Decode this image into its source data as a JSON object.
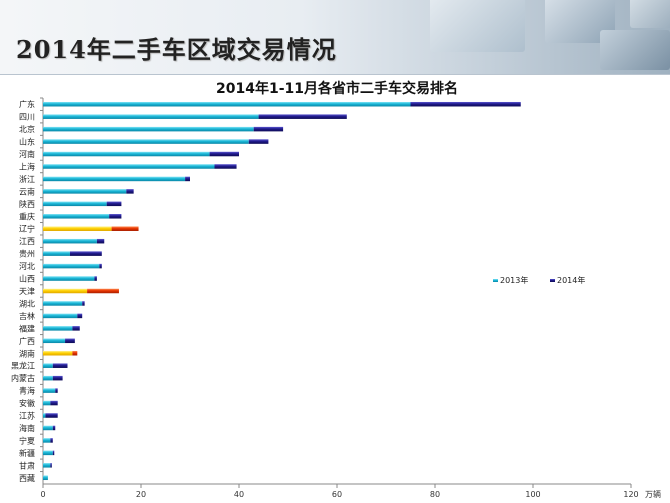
{
  "slide": {
    "title": "2014年二手车区域交易情况"
  },
  "chart_data": {
    "type": "bar",
    "orientation": "horizontal",
    "stacked": true,
    "title": "2014年1-11月各省市二手车交易排名",
    "unit": "万辆",
    "xlim": [
      0,
      120
    ],
    "xticks": [
      0,
      20,
      40,
      60,
      80,
      100,
      120
    ],
    "grid": false,
    "legend_position": "right",
    "categories": [
      "广东",
      "四川",
      "北京",
      "山东",
      "河南",
      "上海",
      "浙江",
      "云南",
      "陕西",
      "重庆",
      "辽宁",
      "江西",
      "贵州",
      "河北",
      "山西",
      "天津",
      "湖北",
      "吉林",
      "福建",
      "广西",
      "湖南",
      "黑龙江",
      "内蒙古",
      "青海",
      "安徽",
      "江苏",
      "海南",
      "宁夏",
      "新疆",
      "甘肃",
      "西藏"
    ],
    "series": [
      {
        "name": "2013年",
        "color": "#19b6d6",
        "values": [
          75,
          44,
          43,
          42,
          34,
          35,
          29,
          17,
          13,
          13.5,
          14,
          11,
          5.5,
          11.5,
          10.5,
          9,
          8,
          7,
          6,
          4.5,
          6,
          2,
          2,
          2.5,
          1.5,
          0.5,
          2,
          1.5,
          2,
          1.5,
          1
        ]
      },
      {
        "name": "2014年",
        "color": "#1f1a8a",
        "values": [
          22.5,
          18,
          6,
          4,
          6,
          4.5,
          1,
          1.5,
          3,
          2.5,
          5.5,
          1.5,
          6.5,
          0.5,
          0.5,
          6.5,
          0.5,
          1,
          1.5,
          2,
          1,
          3,
          2,
          0.5,
          1.5,
          2.5,
          0.5,
          0.5,
          0.3,
          0.3,
          0
        ]
      }
    ],
    "highlighted": [
      {
        "category": "辽宁",
        "colors": [
          "#ffd000",
          "#e63300"
        ]
      },
      {
        "category": "天津",
        "colors": [
          "#ffd000",
          "#e63300"
        ]
      },
      {
        "category": "湖南",
        "colors": [
          "#ffd000",
          "#e63300"
        ]
      }
    ]
  }
}
